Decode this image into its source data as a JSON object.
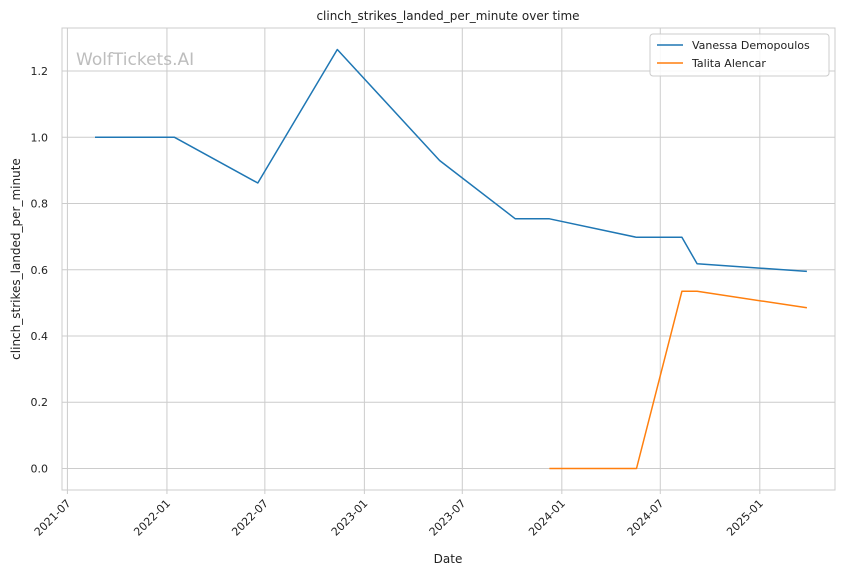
{
  "chart_data": {
    "type": "line",
    "title": "clinch_strikes_landed_per_minute over time",
    "xlabel": "Date",
    "ylabel": "clinch_strikes_landed_per_minute",
    "watermark": "WolfTickets.AI",
    "x_ticks": [
      "2021-07",
      "2022-01",
      "2022-07",
      "2023-01",
      "2023-07",
      "2024-01",
      "2024-07",
      "2025-01"
    ],
    "y_ticks": [
      "0.0",
      "0.2",
      "0.4",
      "0.6",
      "0.8",
      "1.0",
      "1.2"
    ],
    "xlim": [
      "2021-06-21",
      "2025-05-20"
    ],
    "ylim": [
      -0.065,
      1.33
    ],
    "grid": true,
    "legend_position": "top-right",
    "series": [
      {
        "name": "Vanessa Demopoulos",
        "color": "#1f77b4",
        "points": [
          {
            "x": "2021-08-21",
            "y": 1.0
          },
          {
            "x": "2022-01-15",
            "y": 1.0
          },
          {
            "x": "2022-06-18",
            "y": 0.862
          },
          {
            "x": "2022-11-12",
            "y": 1.265
          },
          {
            "x": "2023-05-20",
            "y": 0.93
          },
          {
            "x": "2023-10-07",
            "y": 0.754
          },
          {
            "x": "2023-12-09",
            "y": 0.754
          },
          {
            "x": "2024-05-18",
            "y": 0.698
          },
          {
            "x": "2024-08-10",
            "y": 0.698
          },
          {
            "x": "2024-09-07",
            "y": 0.618
          },
          {
            "x": "2025-03-29",
            "y": 0.595
          }
        ]
      },
      {
        "name": "Talita Alencar",
        "color": "#ff7f0e",
        "points": [
          {
            "x": "2023-12-09",
            "y": 0.0
          },
          {
            "x": "2024-05-18",
            "y": 0.0
          },
          {
            "x": "2024-08-10",
            "y": 0.535
          },
          {
            "x": "2024-09-07",
            "y": 0.535
          },
          {
            "x": "2025-03-29",
            "y": 0.485
          }
        ]
      }
    ]
  }
}
